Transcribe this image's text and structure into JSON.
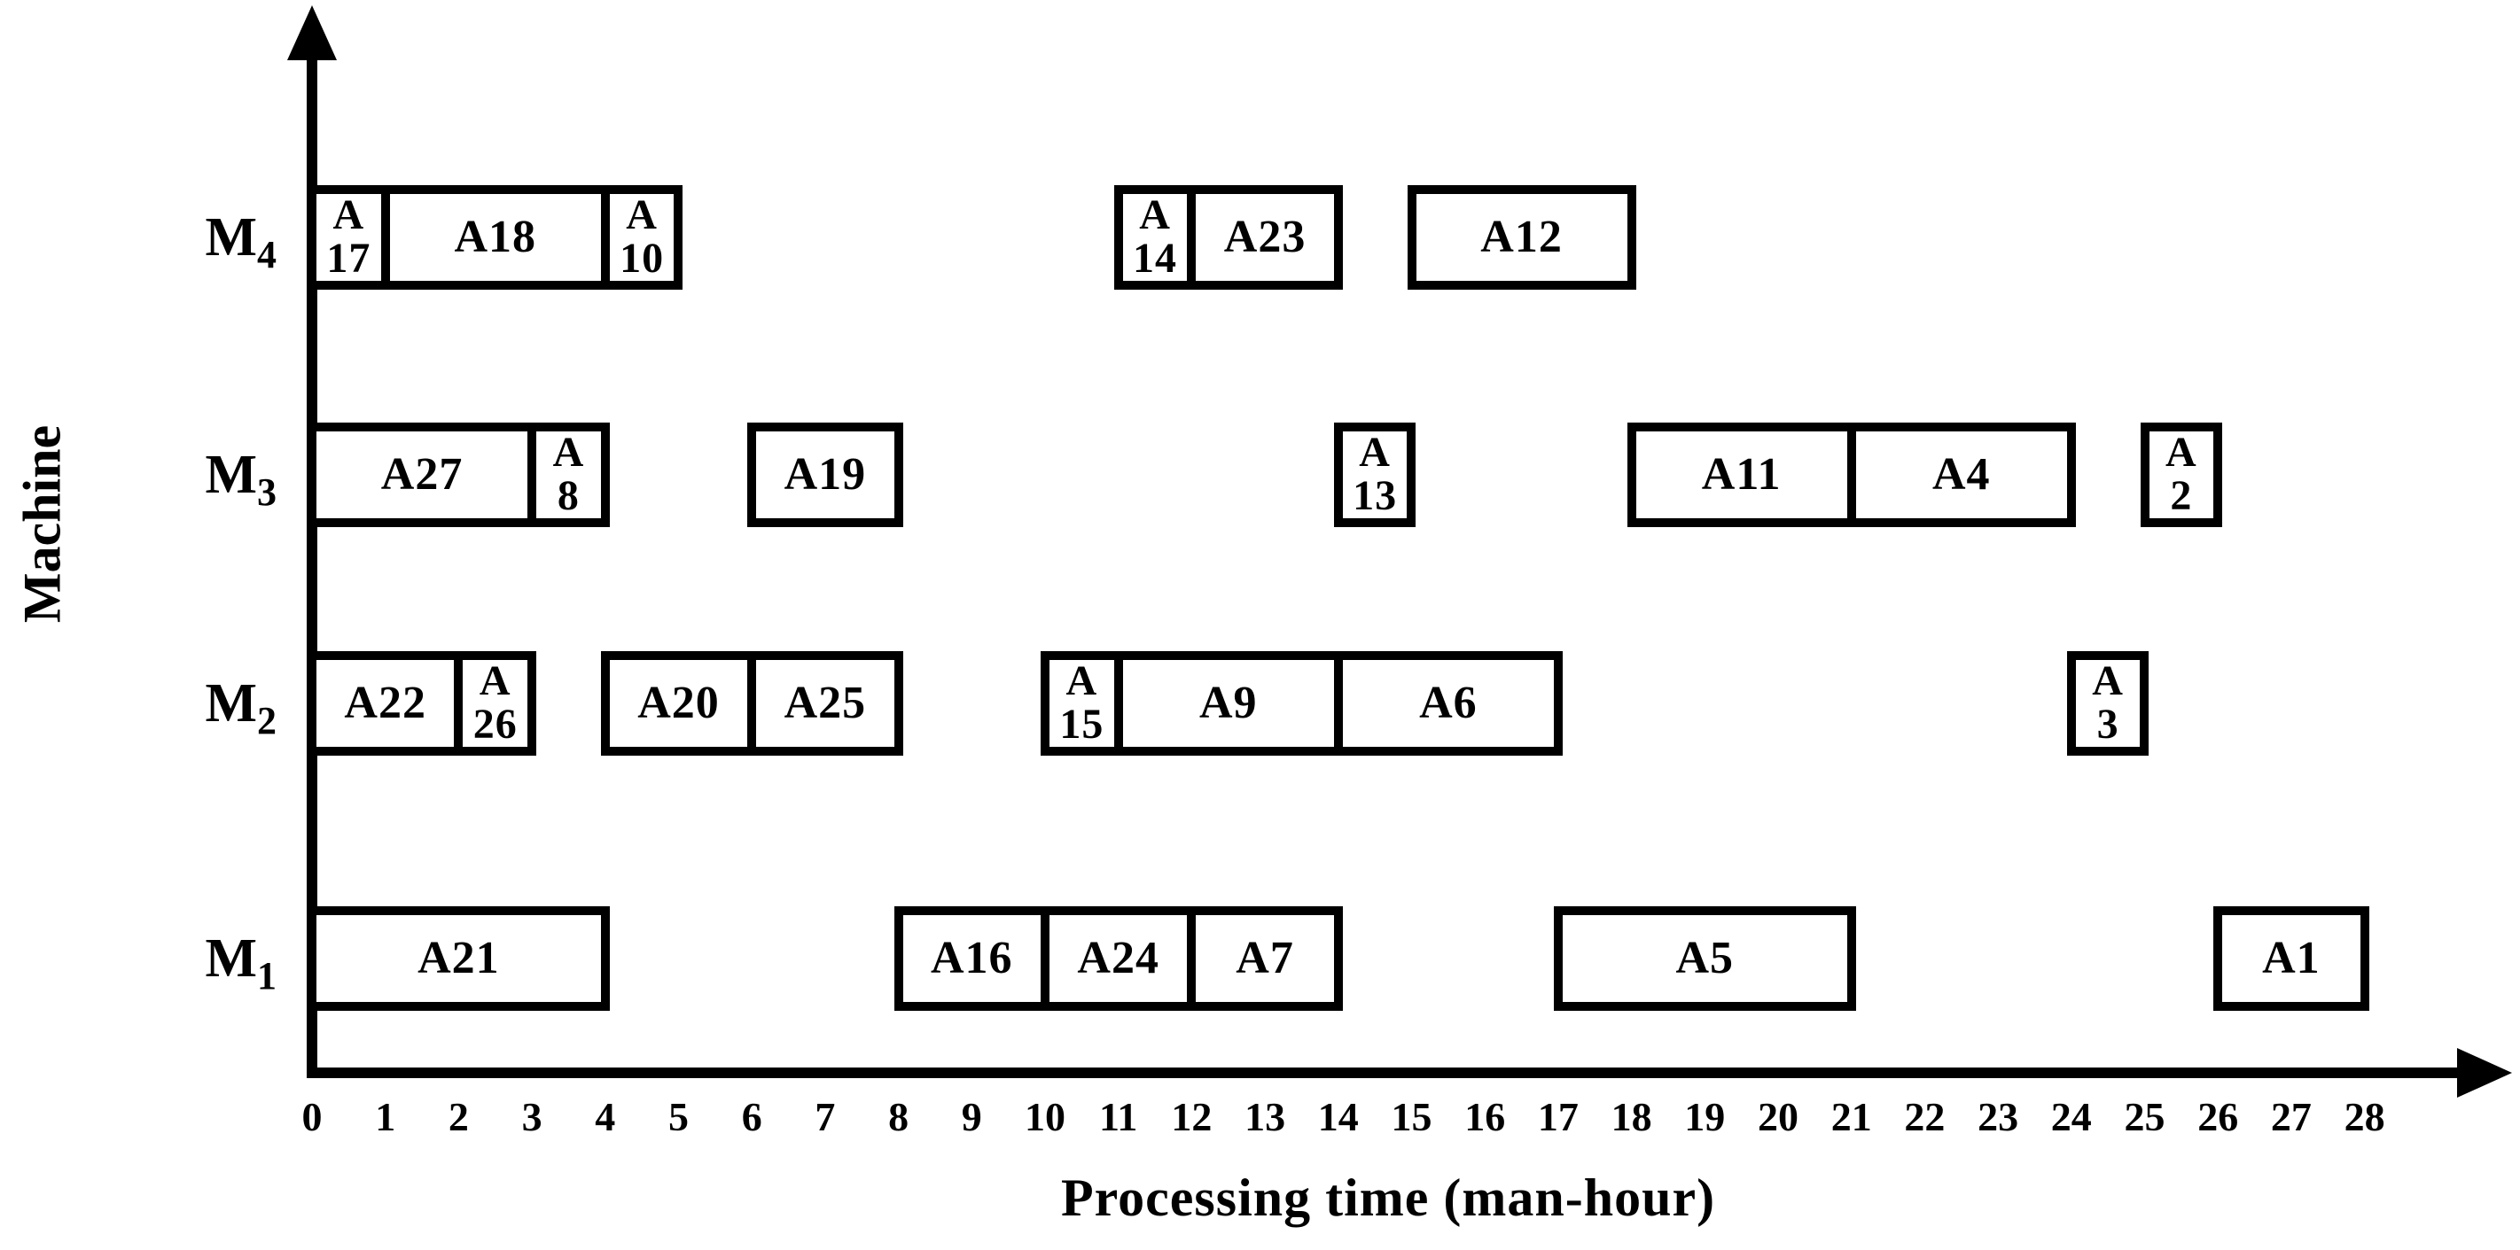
{
  "chart_data": {
    "type": "bar",
    "subtype": "gantt-machine-schedule",
    "title": "",
    "xlabel": "Processing time (man-hour)",
    "ylabel": "Machine",
    "xlim": [
      0,
      28
    ],
    "x_ticks": [
      0,
      1,
      2,
      3,
      4,
      5,
      6,
      7,
      8,
      9,
      10,
      11,
      12,
      13,
      14,
      15,
      16,
      17,
      18,
      19,
      20,
      21,
      22,
      23,
      24,
      25,
      26,
      27,
      28
    ],
    "grid": false,
    "legend": null,
    "colors": {
      "foreground": "#000000",
      "background": "#ffffff",
      "bar_fill": "#ffffff",
      "bar_border": "#000000"
    },
    "rows": [
      {
        "machine": "M4",
        "machine_base": "M",
        "machine_sub": "4",
        "tasks": [
          {
            "label": "A17",
            "start": 0,
            "end": 1
          },
          {
            "label": "A18",
            "start": 1,
            "end": 4
          },
          {
            "label": "A10",
            "start": 4,
            "end": 5
          },
          {
            "label": "A14",
            "start": 11,
            "end": 12
          },
          {
            "label": "A23",
            "start": 12,
            "end": 14
          },
          {
            "label": "A12",
            "start": 15,
            "end": 18
          }
        ]
      },
      {
        "machine": "M3",
        "machine_base": "M",
        "machine_sub": "3",
        "tasks": [
          {
            "label": "A27",
            "start": 0,
            "end": 3
          },
          {
            "label": "A8",
            "start": 3,
            "end": 4
          },
          {
            "label": "A19",
            "start": 6,
            "end": 8
          },
          {
            "label": "A13",
            "start": 14,
            "end": 15
          },
          {
            "label": "A11",
            "start": 18,
            "end": 21
          },
          {
            "label": "A4",
            "start": 21,
            "end": 24
          },
          {
            "label": "A2",
            "start": 25,
            "end": 26
          }
        ]
      },
      {
        "machine": "M2",
        "machine_base": "M",
        "machine_sub": "2",
        "tasks": [
          {
            "label": "A22",
            "start": 0,
            "end": 2
          },
          {
            "label": "A26",
            "start": 2,
            "end": 3
          },
          {
            "label": "A20",
            "start": 4,
            "end": 6
          },
          {
            "label": "A25",
            "start": 6,
            "end": 8
          },
          {
            "label": "A15",
            "start": 10,
            "end": 11
          },
          {
            "label": "A9",
            "start": 11,
            "end": 14
          },
          {
            "label": "A6",
            "start": 14,
            "end": 17
          },
          {
            "label": "A3",
            "start": 24,
            "end": 25
          }
        ]
      },
      {
        "machine": "M1",
        "machine_base": "M",
        "machine_sub": "1",
        "tasks": [
          {
            "label": "A21",
            "start": 0,
            "end": 4
          },
          {
            "label": "A16",
            "start": 8,
            "end": 10
          },
          {
            "label": "A24",
            "start": 10,
            "end": 12
          },
          {
            "label": "A7",
            "start": 12,
            "end": 14
          },
          {
            "label": "A5",
            "start": 17,
            "end": 21
          },
          {
            "label": "A1",
            "start": 26,
            "end": 28
          }
        ]
      }
    ]
  }
}
